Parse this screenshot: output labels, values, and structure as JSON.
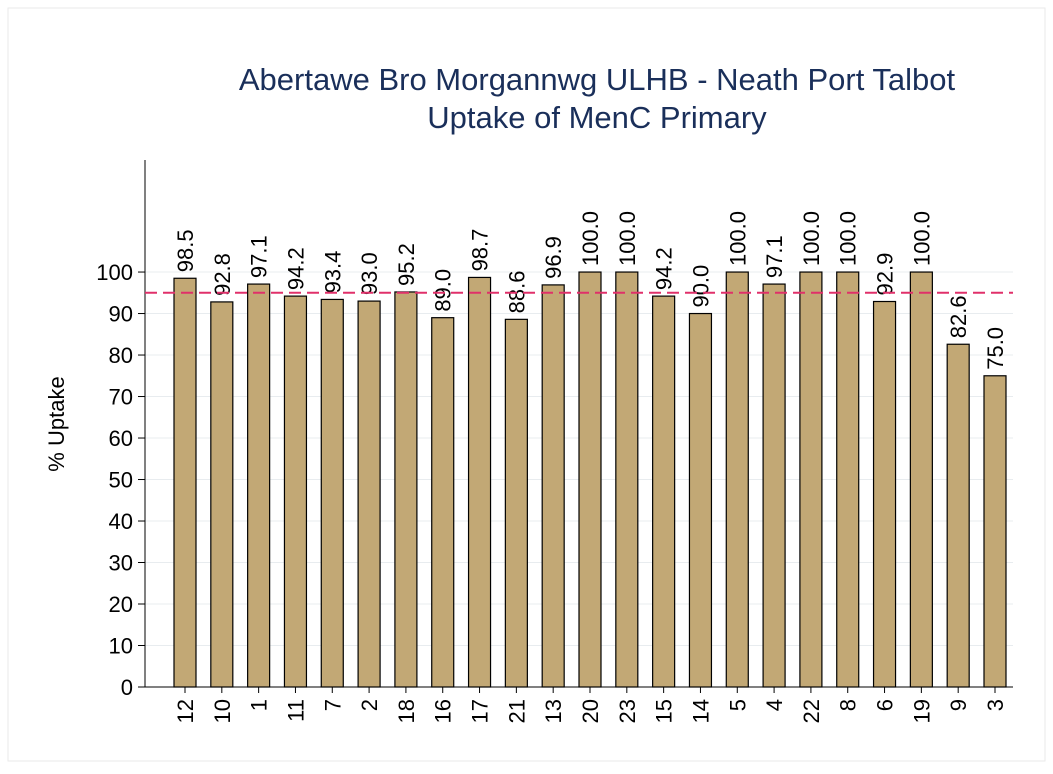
{
  "chart_data": {
    "type": "bar",
    "title": [
      "Abertawe Bro Morgannwg ULHB - Neath Port Talbot",
      "Uptake of MenC Primary"
    ],
    "ylabel": "% Uptake",
    "categories": [
      "12",
      "10",
      "1",
      "11",
      "7",
      "2",
      "18",
      "16",
      "17",
      "21",
      "13",
      "20",
      "23",
      "15",
      "14",
      "5",
      "4",
      "22",
      "8",
      "6",
      "19",
      "9",
      "3"
    ],
    "values": [
      98.5,
      92.8,
      97.1,
      94.2,
      93.4,
      93.0,
      95.2,
      89.0,
      98.7,
      88.6,
      96.9,
      100.0,
      100.0,
      94.2,
      90.0,
      100.0,
      97.1,
      100.0,
      100.0,
      92.9,
      100.0,
      82.6,
      75.0
    ],
    "value_labels": [
      "98.5",
      "92.8",
      "97.1",
      "94.2",
      "93.4",
      "93.0",
      "95.2",
      "89.0",
      "98.7",
      "88.6",
      "96.9",
      "100.0",
      "100.0",
      "94.2",
      "90.0",
      "100.0",
      "97.1",
      "100.0",
      "100.0",
      "92.9",
      "100.0",
      "82.6",
      "75.0"
    ],
    "color": "#c2a875",
    "ylim": [
      0,
      127
    ],
    "yticks": [
      0,
      10,
      20,
      30,
      40,
      50,
      60,
      70,
      80,
      90,
      100
    ],
    "grid": true,
    "reference_line": {
      "value": 95,
      "color": "#e0306a"
    }
  }
}
